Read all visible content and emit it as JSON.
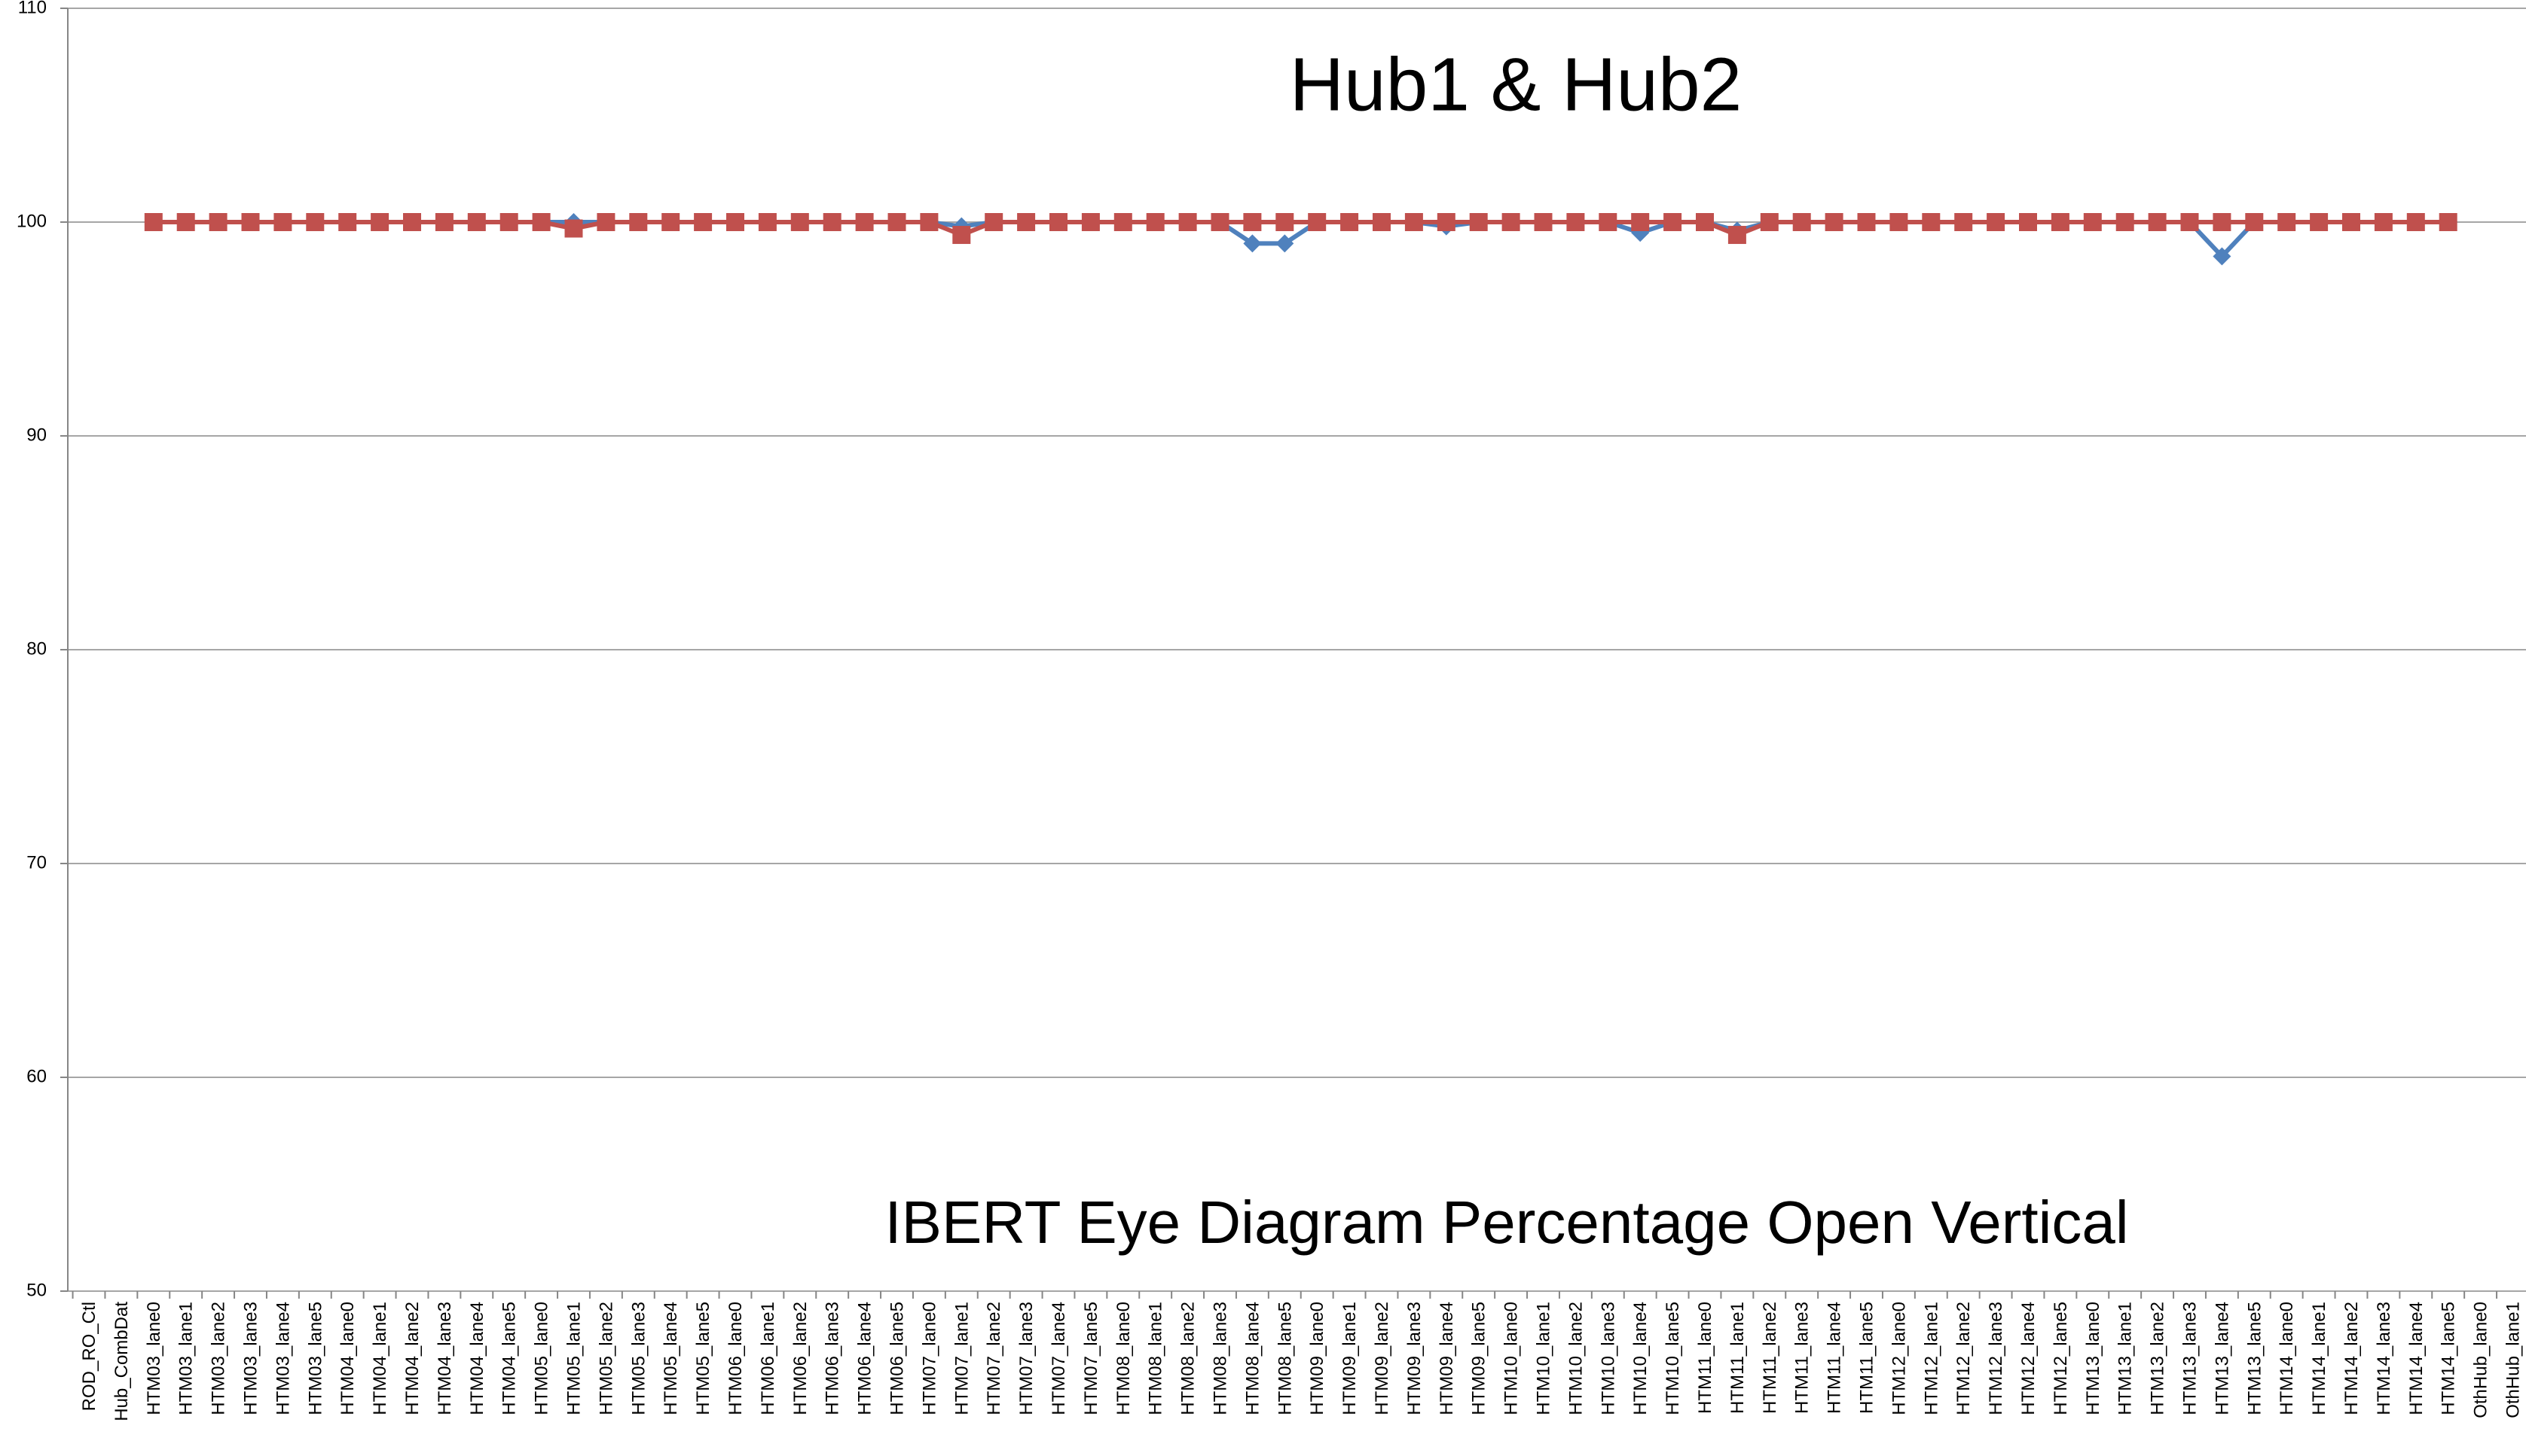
{
  "chart_data": {
    "type": "line",
    "title": "Hub1 & Hub2",
    "subtitle": "IBERT Eye Diagram Percentage Open Vertical",
    "categories": [
      "ROD_RO_Ctl",
      "Hub_CombDat",
      "HTM03_lane0",
      "HTM03_lane1",
      "HTM03_lane2",
      "HTM03_lane3",
      "HTM03_lane4",
      "HTM03_lane5",
      "HTM04_lane0",
      "HTM04_lane1",
      "HTM04_lane2",
      "HTM04_lane3",
      "HTM04_lane4",
      "HTM04_lane5",
      "HTM05_lane0",
      "HTM05_lane1",
      "HTM05_lane2",
      "HTM05_lane3",
      "HTM05_lane4",
      "HTM05_lane5",
      "HTM06_lane0",
      "HTM06_lane1",
      "HTM06_lane2",
      "HTM06_lane3",
      "HTM06_lane4",
      "HTM06_lane5",
      "HTM07_lane0",
      "HTM07_lane1",
      "HTM07_lane2",
      "HTM07_lane3",
      "HTM07_lane4",
      "HTM07_lane5",
      "HTM08_lane0",
      "HTM08_lane1",
      "HTM08_lane2",
      "HTM08_lane3",
      "HTM08_lane4",
      "HTM08_lane5",
      "HTM09_lane0",
      "HTM09_lane1",
      "HTM09_lane2",
      "HTM09_lane3",
      "HTM09_lane4",
      "HTM09_lane5",
      "HTM10_lane0",
      "HTM10_lane1",
      "HTM10_lane2",
      "HTM10_lane3",
      "HTM10_lane4",
      "HTM10_lane5",
      "HTM11_lane0",
      "HTM11_lane1",
      "HTM11_lane2",
      "HTM11_lane3",
      "HTM11_lane4",
      "HTM11_lane5",
      "HTM12_lane0",
      "HTM12_lane1",
      "HTM12_lane2",
      "HTM12_lane3",
      "HTM12_lane4",
      "HTM12_lane5",
      "HTM13_lane0",
      "HTM13_lane1",
      "HTM13_lane2",
      "HTM13_lane3",
      "HTM13_lane4",
      "HTM13_lane5",
      "HTM14_lane0",
      "HTM14_lane1",
      "HTM14_lane2",
      "HTM14_lane3",
      "HTM14_lane4",
      "HTM14_lane5",
      "OthHub_lane0",
      "OthHub_lane1"
    ],
    "series": [
      {
        "name": "Hub1",
        "color": "#4f81bd",
        "marker": "diamond",
        "values": [
          null,
          null,
          100,
          100,
          100,
          100,
          100,
          100,
          100,
          100,
          100,
          100,
          100,
          100,
          100,
          100,
          100,
          100,
          100,
          100,
          100,
          100,
          100,
          100,
          100,
          100,
          100,
          99.8,
          100,
          100,
          100,
          100,
          100,
          100,
          100,
          100,
          99.0,
          99.0,
          100,
          100,
          100,
          100,
          99.8,
          100,
          100,
          100,
          100,
          100,
          99.5,
          100,
          100,
          99.6,
          100,
          100,
          100,
          100,
          100,
          100,
          100,
          100,
          100,
          100,
          100,
          100,
          100,
          100,
          98.4,
          100,
          100,
          100,
          100,
          100,
          100,
          100,
          null,
          null
        ]
      },
      {
        "name": "Hub2",
        "color": "#c0504d",
        "marker": "square",
        "values": [
          null,
          null,
          100,
          100,
          100,
          100,
          100,
          100,
          100,
          100,
          100,
          100,
          100,
          100,
          100,
          99.7,
          100,
          100,
          100,
          100,
          100,
          100,
          100,
          100,
          100,
          100,
          100,
          99.4,
          100,
          100,
          100,
          100,
          100,
          100,
          100,
          100,
          100,
          100,
          100,
          100,
          100,
          100,
          100,
          100,
          100,
          100,
          100,
          100,
          100,
          100,
          100,
          99.4,
          100,
          100,
          100,
          100,
          100,
          100,
          100,
          100,
          100,
          100,
          100,
          100,
          100,
          100,
          100,
          100,
          100,
          100,
          100,
          100,
          100,
          100,
          null,
          null
        ]
      }
    ],
    "ylim": [
      50,
      110
    ],
    "yticks": [
      50,
      60,
      70,
      80,
      90,
      100,
      110
    ],
    "grid": true
  }
}
